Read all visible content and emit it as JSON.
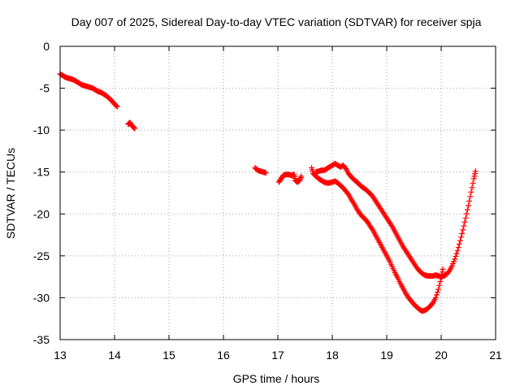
{
  "chart_data": {
    "type": "scatter",
    "title": "Day 007 of 2025, Sidereal Day-to-day VTEC variation (SDTVAR) for receiver spja",
    "xlabel": "GPS time / hours",
    "ylabel": "SDTVAR / TECUs",
    "xlim": [
      13,
      21
    ],
    "ylim": [
      -35,
      0
    ],
    "x_ticks": [
      13,
      14,
      15,
      16,
      17,
      18,
      19,
      20,
      21
    ],
    "x_tick_labels": [
      "13",
      "14",
      "15",
      "16",
      "17",
      "18",
      "19",
      "20",
      "21"
    ],
    "y_ticks": [
      0,
      -5,
      -10,
      -15,
      -20,
      -25,
      -30,
      -35
    ],
    "y_tick_labels": [
      "0",
      "-5",
      "-10",
      "-15",
      "-20",
      "-25",
      "-30",
      "-35"
    ],
    "grid": true,
    "marker": "plus",
    "color": "#ff0000",
    "series": [
      {
        "name": "SDTVAR",
        "segments": [
          [
            [
              13.0,
              -3.3
            ],
            [
              13.05,
              -3.5
            ],
            [
              13.1,
              -3.7
            ],
            [
              13.15,
              -3.8
            ],
            [
              13.2,
              -3.9
            ],
            [
              13.25,
              -4.0
            ],
            [
              13.3,
              -4.2
            ],
            [
              13.35,
              -4.4
            ],
            [
              13.4,
              -4.6
            ],
            [
              13.45,
              -4.7
            ],
            [
              13.5,
              -4.8
            ],
            [
              13.55,
              -4.9
            ],
            [
              13.6,
              -5.0
            ],
            [
              13.65,
              -5.2
            ],
            [
              13.7,
              -5.4
            ],
            [
              13.75,
              -5.5
            ],
            [
              13.8,
              -5.7
            ],
            [
              13.85,
              -5.9
            ],
            [
              13.9,
              -6.2
            ],
            [
              13.95,
              -6.5
            ],
            [
              14.0,
              -6.9
            ],
            [
              14.05,
              -7.2
            ]
          ],
          [
            [
              14.25,
              -9.3
            ],
            [
              14.28,
              -9.1
            ],
            [
              14.31,
              -9.4
            ],
            [
              14.34,
              -9.6
            ],
            [
              14.37,
              -9.8
            ]
          ],
          [
            [
              16.58,
              -14.5
            ],
            [
              16.63,
              -14.8
            ],
            [
              16.68,
              -14.9
            ],
            [
              16.73,
              -15.0
            ],
            [
              16.78,
              -15.1
            ]
          ],
          [
            [
              17.02,
              -16.2
            ],
            [
              17.06,
              -15.8
            ],
            [
              17.1,
              -15.4
            ],
            [
              17.15,
              -15.3
            ],
            [
              17.2,
              -15.3
            ],
            [
              17.25,
              -15.4
            ],
            [
              17.3,
              -15.3
            ],
            [
              17.32,
              -16.0
            ],
            [
              17.36,
              -16.2
            ],
            [
              17.4,
              -16.0
            ],
            [
              17.43,
              -15.5
            ]
          ],
          [
            [
              17.62,
              -14.5
            ],
            [
              17.65,
              -15.2
            ],
            [
              17.7,
              -15.5
            ],
            [
              17.75,
              -15.8
            ],
            [
              17.8,
              -16.0
            ],
            [
              17.85,
              -16.2
            ],
            [
              17.9,
              -16.3
            ],
            [
              17.95,
              -16.3
            ],
            [
              18.0,
              -16.2
            ],
            [
              18.05,
              -16.1
            ],
            [
              18.1,
              -16.3
            ],
            [
              18.15,
              -16.6
            ],
            [
              18.2,
              -16.9
            ],
            [
              18.25,
              -17.3
            ],
            [
              18.3,
              -17.7
            ],
            [
              18.35,
              -18.3
            ],
            [
              18.4,
              -18.8
            ],
            [
              18.45,
              -19.4
            ],
            [
              18.5,
              -19.9
            ],
            [
              18.55,
              -20.3
            ],
            [
              18.6,
              -20.6
            ],
            [
              18.65,
              -21.0
            ],
            [
              18.7,
              -21.5
            ],
            [
              18.75,
              -22.0
            ],
            [
              18.8,
              -22.6
            ],
            [
              18.85,
              -23.2
            ],
            [
              18.9,
              -23.8
            ],
            [
              18.95,
              -24.4
            ],
            [
              19.0,
              -25.0
            ],
            [
              19.05,
              -25.6
            ],
            [
              19.1,
              -26.3
            ],
            [
              19.15,
              -27.0
            ],
            [
              19.2,
              -27.6
            ],
            [
              19.25,
              -28.3
            ],
            [
              19.3,
              -28.9
            ],
            [
              19.35,
              -29.5
            ],
            [
              19.4,
              -30.0
            ],
            [
              19.45,
              -30.4
            ],
            [
              19.5,
              -30.8
            ],
            [
              19.55,
              -31.1
            ],
            [
              19.6,
              -31.4
            ],
            [
              19.65,
              -31.6
            ],
            [
              19.7,
              -31.5
            ],
            [
              19.75,
              -31.3
            ],
            [
              19.8,
              -31.0
            ],
            [
              19.85,
              -30.6
            ],
            [
              19.9,
              -30.0
            ],
            [
              19.95,
              -29.0
            ],
            [
              20.0,
              -27.6
            ],
            [
              20.03,
              -26.6
            ]
          ],
          [
            [
              17.7,
              -15.0
            ],
            [
              17.75,
              -14.9
            ],
            [
              17.8,
              -14.8
            ],
            [
              17.85,
              -14.8
            ],
            [
              17.9,
              -14.6
            ],
            [
              17.95,
              -14.4
            ],
            [
              18.0,
              -14.2
            ],
            [
              18.05,
              -14.0
            ],
            [
              18.1,
              -14.2
            ],
            [
              18.15,
              -14.4
            ],
            [
              18.2,
              -14.2
            ],
            [
              18.25,
              -14.6
            ],
            [
              18.3,
              -15.2
            ],
            [
              18.35,
              -15.6
            ],
            [
              18.4,
              -15.9
            ],
            [
              18.45,
              -16.2
            ],
            [
              18.5,
              -16.5
            ],
            [
              18.55,
              -16.8
            ],
            [
              18.6,
              -17.0
            ],
            [
              18.65,
              -17.3
            ],
            [
              18.7,
              -17.6
            ],
            [
              18.75,
              -18.0
            ],
            [
              18.8,
              -18.5
            ],
            [
              18.85,
              -19.0
            ],
            [
              18.9,
              -19.5
            ],
            [
              18.95,
              -20.0
            ],
            [
              19.0,
              -20.5
            ],
            [
              19.05,
              -21.0
            ],
            [
              19.1,
              -21.5
            ],
            [
              19.15,
              -22.1
            ],
            [
              19.2,
              -22.7
            ],
            [
              19.25,
              -23.3
            ],
            [
              19.3,
              -23.9
            ],
            [
              19.35,
              -24.4
            ],
            [
              19.4,
              -24.9
            ],
            [
              19.45,
              -25.4
            ],
            [
              19.5,
              -25.9
            ],
            [
              19.55,
              -26.4
            ],
            [
              19.6,
              -26.8
            ],
            [
              19.65,
              -27.1
            ],
            [
              19.7,
              -27.3
            ],
            [
              19.75,
              -27.4
            ],
            [
              19.8,
              -27.4
            ],
            [
              19.85,
              -27.4
            ],
            [
              19.9,
              -27.3
            ],
            [
              19.95,
              -27.4
            ],
            [
              20.0,
              -27.5
            ],
            [
              20.05,
              -27.4
            ],
            [
              20.1,
              -27.2
            ],
            [
              20.15,
              -26.8
            ],
            [
              20.2,
              -26.2
            ],
            [
              20.25,
              -25.4
            ],
            [
              20.3,
              -24.4
            ],
            [
              20.35,
              -23.2
            ],
            [
              20.4,
              -21.9
            ],
            [
              20.45,
              -20.5
            ],
            [
              20.5,
              -19.0
            ],
            [
              20.55,
              -17.4
            ],
            [
              20.6,
              -15.8
            ],
            [
              20.63,
              -14.9
            ]
          ]
        ]
      }
    ]
  }
}
